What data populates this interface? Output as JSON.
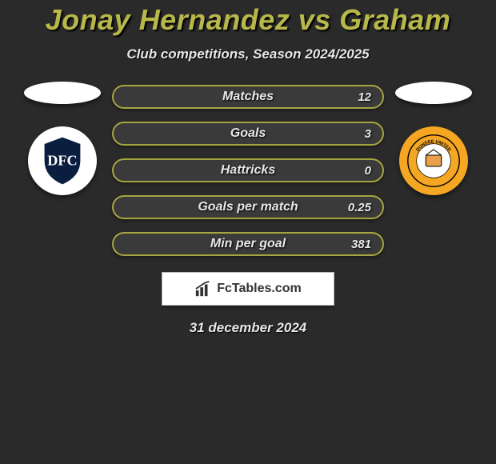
{
  "title": "Jonay Hernandez vs Graham",
  "subtitle": "Club competitions, Season 2024/2025",
  "date": "31 december 2024",
  "brand": "FcTables.com",
  "accent_color": "#a5a53f",
  "row_bg": "#3a3a3a",
  "stats": [
    {
      "label": "Matches",
      "value": "12"
    },
    {
      "label": "Goals",
      "value": "3"
    },
    {
      "label": "Hattricks",
      "value": "0"
    },
    {
      "label": "Goals per match",
      "value": "0.25"
    },
    {
      "label": "Min per goal",
      "value": "381"
    }
  ],
  "left_team": {
    "name": "Dundee FC",
    "crest_bg": "#ffffff",
    "shield": "#0a1e3f"
  },
  "right_team": {
    "name": "Dundee United",
    "crest_bg": "#f5a623",
    "ring": "#d97400"
  }
}
